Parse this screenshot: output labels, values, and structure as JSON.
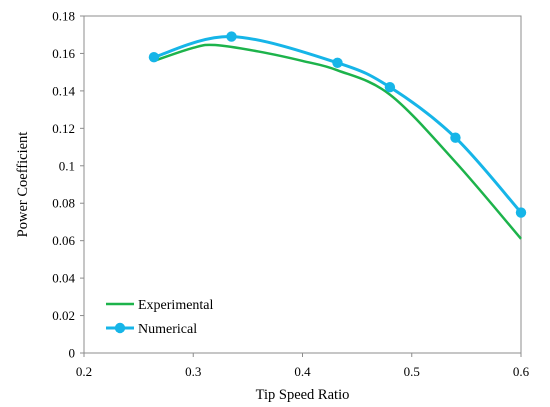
{
  "chart_data": {
    "type": "line",
    "title": "",
    "xlabel": "Tip Speed Ratio",
    "ylabel": "Power Coefficient",
    "xlim": [
      0.2,
      0.6
    ],
    "ylim": [
      0,
      0.18
    ],
    "x_ticks": [
      0.2,
      0.3,
      0.4,
      0.5,
      0.6
    ],
    "x_tick_labels": [
      "0.2",
      "0.3",
      "0.4",
      "0.5",
      "0.6"
    ],
    "y_ticks": [
      0,
      0.02,
      0.04,
      0.06,
      0.08,
      0.1,
      0.12,
      0.14,
      0.16,
      0.18
    ],
    "y_tick_labels": [
      "0",
      "0.02",
      "0.04",
      "0.06",
      "0.08",
      "0.1",
      "0.12",
      "0.14",
      "0.16",
      "0.18"
    ],
    "grid": false,
    "legend_position": "bottom-left",
    "series": [
      {
        "name": "Experimental",
        "color": "#1db34b",
        "markers": false,
        "points": [
          {
            "x": 0.264,
            "y": 0.156
          },
          {
            "x": 0.3,
            "y": 0.163
          },
          {
            "x": 0.32,
            "y": 0.1645
          },
          {
            "x": 0.36,
            "y": 0.161
          },
          {
            "x": 0.4,
            "y": 0.156
          },
          {
            "x": 0.432,
            "y": 0.151
          },
          {
            "x": 0.48,
            "y": 0.138
          },
          {
            "x": 0.54,
            "y": 0.102
          },
          {
            "x": 0.6,
            "y": 0.061
          }
        ]
      },
      {
        "name": "Numerical",
        "color": "#16b5e8",
        "markers": true,
        "points": [
          {
            "x": 0.264,
            "y": 0.158
          },
          {
            "x": 0.335,
            "y": 0.169
          },
          {
            "x": 0.432,
            "y": 0.155
          },
          {
            "x": 0.48,
            "y": 0.142
          },
          {
            "x": 0.54,
            "y": 0.115
          },
          {
            "x": 0.6,
            "y": 0.075
          }
        ]
      }
    ]
  }
}
